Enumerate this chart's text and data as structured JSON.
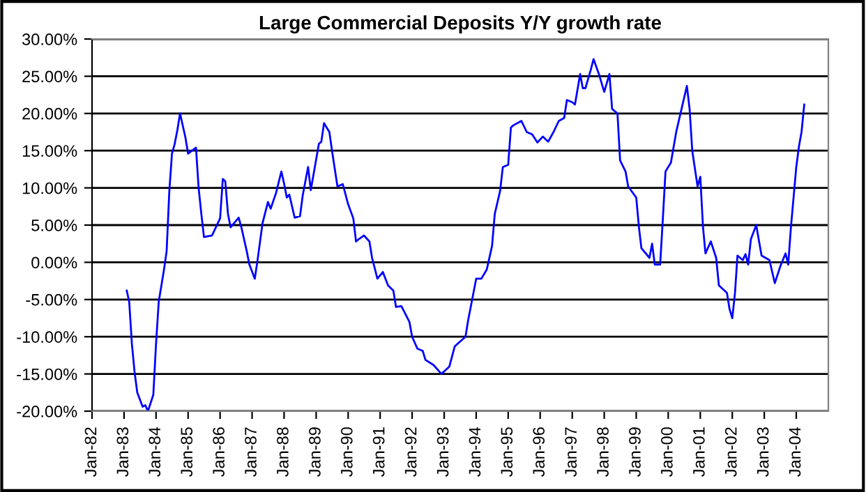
{
  "chart_data": {
    "type": "line",
    "title": "Large Commercial Deposits Y/Y growth rate",
    "x": [
      "1983-02",
      "1983-03",
      "1983-04",
      "1983-05",
      "1983-06",
      "1983-08",
      "1983-09",
      "1983-10",
      "1983-12",
      "1984-01",
      "1984-02",
      "1984-04",
      "1984-05",
      "1984-06",
      "1984-07",
      "1984-08",
      "1984-09",
      "1984-10",
      "1984-12",
      "1985-01",
      "1985-04",
      "1985-05",
      "1985-06",
      "1985-07",
      "1985-10",
      "1986-01",
      "1986-02",
      "1986-03",
      "1986-04",
      "1986-05",
      "1986-08",
      "1986-09",
      "1986-11",
      "1986-12",
      "1987-02",
      "1987-03",
      "1987-05",
      "1987-07",
      "1987-08",
      "1987-10",
      "1987-12",
      "1988-01",
      "1988-02",
      "1988-03",
      "1988-05",
      "1988-07",
      "1988-08",
      "1988-10",
      "1988-11",
      "1989-02",
      "1989-03",
      "1989-04",
      "1989-06",
      "1989-07",
      "1989-09",
      "1989-11",
      "1990-01",
      "1990-03",
      "1990-04",
      "1990-05",
      "1990-07",
      "1990-09",
      "1990-10",
      "1990-12",
      "1991-02",
      "1991-04",
      "1991-06",
      "1991-07",
      "1991-09",
      "1991-12",
      "1992-01",
      "1992-03",
      "1992-05",
      "1992-06",
      "1992-09",
      "1992-12",
      "1993-03",
      "1993-05",
      "1993-09",
      "1993-10",
      "1994-01",
      "1994-03",
      "1994-05",
      "1994-07",
      "1994-08",
      "1994-10",
      "1994-11",
      "1995-01",
      "1995-02",
      "1995-03",
      "1995-06",
      "1995-08",
      "1995-10",
      "1995-12",
      "1996-02",
      "1996-04",
      "1996-06",
      "1996-08",
      "1996-10",
      "1996-11",
      "1997-01",
      "1997-02",
      "1997-04",
      "1997-05",
      "1997-06",
      "1997-08",
      "1997-09",
      "1997-11",
      "1998-01",
      "1998-03",
      "1998-04",
      "1998-06",
      "1998-07",
      "1998-09",
      "1998-10",
      "1999-01",
      "1999-02",
      "1999-03",
      "1999-06",
      "1999-07",
      "1999-08",
      "1999-10",
      "1999-11",
      "1999-12",
      "2000-02",
      "2000-04",
      "2000-06",
      "2000-08",
      "2000-09",
      "2000-10",
      "2000-12",
      "2001-01",
      "2001-02",
      "2001-03",
      "2001-05",
      "2001-07",
      "2001-08",
      "2001-11",
      "2001-12",
      "2002-01",
      "2002-02",
      "2002-03",
      "2002-05",
      "2002-06",
      "2002-07",
      "2002-08",
      "2002-10",
      "2002-12",
      "2003-03",
      "2003-05",
      "2003-07",
      "2003-09",
      "2003-10",
      "2003-11",
      "2004-01",
      "2004-02",
      "2004-03",
      "2004-04"
    ],
    "series": [
      {
        "color": "#0000ff",
        "values": [
          -3.8,
          -5.3,
          -11,
          -14.7,
          -17.5,
          -19.4,
          -19.2,
          -20,
          -17.8,
          -11,
          -5.3,
          -1,
          1.5,
          9.6,
          14.6,
          15.9,
          17.8,
          20,
          16.8,
          14.6,
          15.4,
          10,
          6.5,
          3.4,
          3.6,
          5.9,
          11.2,
          10.9,
          6.5,
          4.7,
          6.0,
          4.7,
          1.5,
          -0.3,
          -2.2,
          0,
          5.3,
          8.1,
          7.2,
          9.3,
          12.2,
          10.6,
          8.7,
          9.1,
          6.0,
          6.2,
          9.0,
          12.8,
          9.7,
          15.9,
          16.2,
          18.7,
          17.5,
          15,
          10.2,
          10.5,
          7.8,
          5.9,
          2.8,
          3.1,
          3.6,
          2.8,
          0.6,
          -2.2,
          -1.3,
          -3.1,
          -3.8,
          -6,
          -5.9,
          -8,
          -10,
          -11.6,
          -11.9,
          -13.1,
          -13.8,
          -15,
          -14,
          -11.3,
          -10,
          -7.8,
          -2.2,
          -2.2,
          -1,
          2.2,
          6.5,
          9.6,
          12.8,
          13.1,
          18.1,
          18.4,
          19,
          17.5,
          17.2,
          16.1,
          16.9,
          16.2,
          17.5,
          19,
          19.4,
          21.8,
          21.5,
          21.2,
          25.3,
          23.4,
          23.4,
          25.9,
          27.3,
          25.3,
          22.9,
          25.3,
          20.6,
          20,
          13.7,
          12.2,
          10.2,
          8.7,
          4.7,
          1.9,
          0.6,
          2.5,
          -0.3,
          -0.3,
          5.9,
          12.2,
          13.4,
          17.5,
          20.6,
          23.7,
          20.6,
          15,
          10.2,
          11.5,
          4.7,
          1.2,
          2.8,
          0.6,
          -3.1,
          -4.1,
          -6.3,
          -7.5,
          -4.1,
          0.9,
          0.3,
          1.1,
          -0.3,
          3.1,
          5,
          0.9,
          0.3,
          -2.8,
          -0.6,
          1.2,
          -0.3,
          4.7,
          12.8,
          15.6,
          17.5,
          21.2
        ]
      }
    ],
    "xlim": [
      "1982-01",
      "2005-01"
    ],
    "xticks": [
      {
        "value": "1982-01",
        "label": "Jan-82"
      },
      {
        "value": "1983-01",
        "label": "Jan-83"
      },
      {
        "value": "1984-01",
        "label": "Jan-84"
      },
      {
        "value": "1985-01",
        "label": "Jan-85"
      },
      {
        "value": "1986-01",
        "label": "Jan-86"
      },
      {
        "value": "1987-01",
        "label": "Jan-87"
      },
      {
        "value": "1988-01",
        "label": "Jan-88"
      },
      {
        "value": "1989-01",
        "label": "Jan-89"
      },
      {
        "value": "1990-01",
        "label": "Jan-90"
      },
      {
        "value": "1991-01",
        "label": "Jan-91"
      },
      {
        "value": "1992-01",
        "label": "Jan-92"
      },
      {
        "value": "1993-01",
        "label": "Jan-93"
      },
      {
        "value": "1994-01",
        "label": "Jan-94"
      },
      {
        "value": "1995-01",
        "label": "Jan-95"
      },
      {
        "value": "1996-01",
        "label": "Jan-96"
      },
      {
        "value": "1997-01",
        "label": "Jan-97"
      },
      {
        "value": "1998-01",
        "label": "Jan-98"
      },
      {
        "value": "1999-01",
        "label": "Jan-99"
      },
      {
        "value": "2000-01",
        "label": "Jan-00"
      },
      {
        "value": "2001-01",
        "label": "Jan-01"
      },
      {
        "value": "2002-01",
        "label": "Jan-02"
      },
      {
        "value": "2003-01",
        "label": "Jan-03"
      },
      {
        "value": "2004-01",
        "label": "Jan-04"
      }
    ],
    "ylim": [
      -20,
      30
    ],
    "yticks": [
      {
        "value": -20,
        "label": "-20.00%"
      },
      {
        "value": -15,
        "label": "-15.00%"
      },
      {
        "value": -10,
        "label": "-10.00%"
      },
      {
        "value": -5,
        "label": "-5.00%"
      },
      {
        "value": 0,
        "label": "0.00%"
      },
      {
        "value": 5,
        "label": "5.00%"
      },
      {
        "value": 10,
        "label": "10.00%"
      },
      {
        "value": 15,
        "label": "15.00%"
      },
      {
        "value": 20,
        "label": "20.00%"
      },
      {
        "value": 25,
        "label": "25.00%"
      },
      {
        "value": 30,
        "label": "30.00%"
      }
    ],
    "grid": "y"
  }
}
